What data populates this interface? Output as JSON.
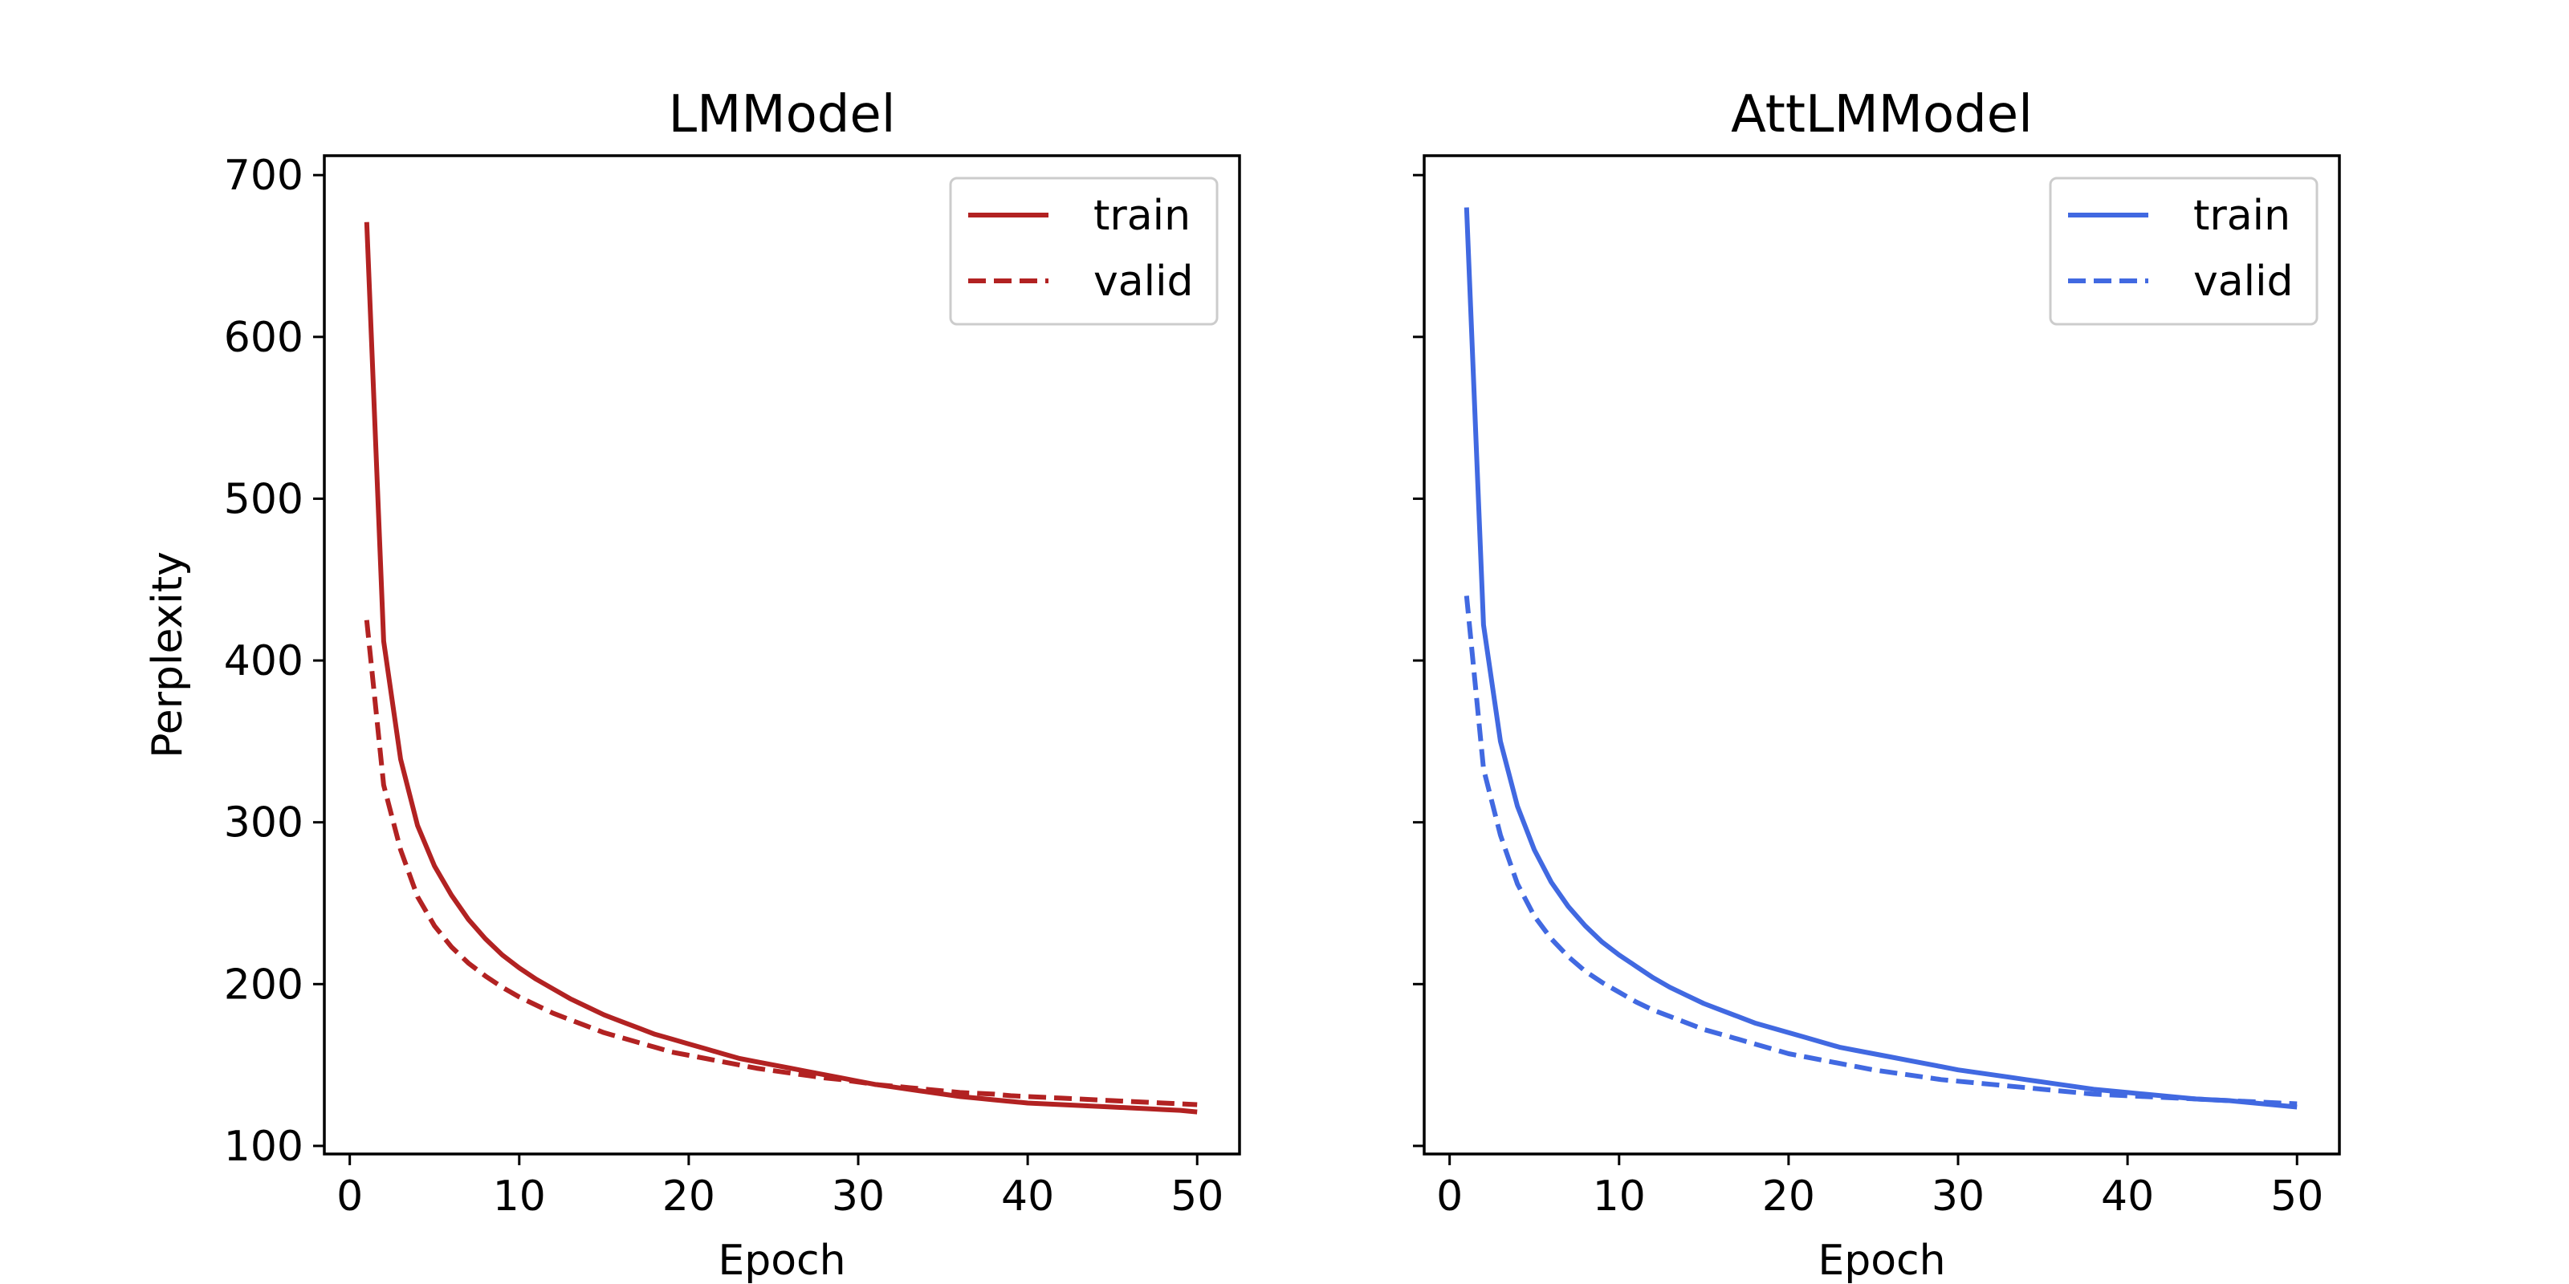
{
  "chart_data": [
    {
      "type": "line",
      "title": "LMModel",
      "xlabel": "Epoch",
      "ylabel": "Perplexity",
      "xlim": [
        -1.5,
        52.5
      ],
      "ylim": [
        95,
        712
      ],
      "xticks": [
        0,
        10,
        20,
        30,
        40,
        50
      ],
      "yticks": [
        100,
        200,
        300,
        400,
        500,
        600,
        700
      ],
      "show_y_tick_labels": true,
      "grid": false,
      "legend_position": "upper right",
      "color": "#b22222",
      "x": [
        1,
        2,
        3,
        4,
        5,
        6,
        7,
        8,
        9,
        10,
        11,
        12,
        13,
        14,
        15,
        16,
        17,
        18,
        19,
        20,
        21,
        22,
        23,
        24,
        25,
        26,
        27,
        28,
        29,
        30,
        31,
        32,
        33,
        34,
        35,
        36,
        37,
        38,
        39,
        40,
        41,
        42,
        43,
        44,
        45,
        46,
        47,
        48,
        49,
        50
      ],
      "series": [
        {
          "name": "train",
          "style": "solid",
          "values": [
            671,
            412,
            339,
            298,
            273,
            255,
            240,
            228,
            218,
            210,
            203,
            197,
            191,
            186,
            181,
            177,
            173,
            169,
            166,
            163,
            160,
            157,
            154,
            152,
            150,
            148,
            146,
            144,
            142,
            140,
            138,
            136.5,
            135,
            133.5,
            132,
            130.5,
            129.5,
            128.5,
            127.5,
            126.5,
            126,
            125.5,
            125,
            124.5,
            124,
            123.5,
            123,
            122.5,
            122,
            121
          ]
        },
        {
          "name": "valid",
          "style": "dashed",
          "values": [
            425,
            323,
            283,
            254,
            236,
            223,
            213,
            205,
            198,
            192,
            187,
            182,
            178,
            174,
            170,
            167,
            164,
            161,
            158,
            156,
            154,
            152,
            150,
            148,
            146.5,
            145,
            143.5,
            142,
            141,
            139.5,
            138,
            137,
            136,
            135,
            134,
            133,
            132.5,
            132,
            131,
            130.5,
            130,
            129.5,
            129,
            128.5,
            128,
            127.5,
            127,
            126.5,
            126,
            125.5
          ]
        }
      ]
    },
    {
      "type": "line",
      "title": "AttLMModel",
      "xlabel": "Epoch",
      "ylabel": "",
      "xlim": [
        -1.5,
        52.5
      ],
      "ylim": [
        95,
        712
      ],
      "xticks": [
        0,
        10,
        20,
        30,
        40,
        50
      ],
      "yticks": [
        100,
        200,
        300,
        400,
        500,
        600,
        700
      ],
      "show_y_tick_labels": false,
      "grid": false,
      "legend_position": "upper right",
      "color": "#4169e1",
      "x": [
        1,
        2,
        3,
        4,
        5,
        6,
        7,
        8,
        9,
        10,
        11,
        12,
        13,
        14,
        15,
        16,
        17,
        18,
        19,
        20,
        21,
        22,
        23,
        24,
        25,
        26,
        27,
        28,
        29,
        30,
        31,
        32,
        33,
        34,
        35,
        36,
        37,
        38,
        39,
        40,
        41,
        42,
        43,
        44,
        45,
        46,
        47,
        48,
        49,
        50
      ],
      "series": [
        {
          "name": "train",
          "style": "solid",
          "values": [
            680,
            422,
            350,
            310,
            283,
            263,
            248,
            236,
            226,
            218,
            211,
            204,
            198,
            193,
            188,
            184,
            180,
            176,
            173,
            170,
            167,
            164,
            161,
            159,
            157,
            155,
            153,
            151,
            149,
            147,
            145.5,
            144,
            142.5,
            141,
            139.5,
            138,
            136.5,
            135,
            134,
            133,
            132,
            131,
            130,
            129,
            128.5,
            128,
            127,
            126,
            125,
            124
          ]
        },
        {
          "name": "valid",
          "style": "dashed",
          "values": [
            440,
            333,
            292,
            262,
            242,
            228,
            217,
            208,
            201,
            195,
            189,
            184,
            180,
            176,
            172,
            169,
            166,
            163,
            160,
            157,
            155,
            153,
            151,
            149,
            147,
            145.5,
            144,
            142.5,
            141,
            140,
            139,
            138,
            137,
            136,
            135,
            134,
            133,
            132,
            131.5,
            131,
            130.5,
            130,
            129.5,
            129,
            128.5,
            128,
            127.5,
            127,
            126.5,
            126
          ]
        }
      ]
    }
  ]
}
